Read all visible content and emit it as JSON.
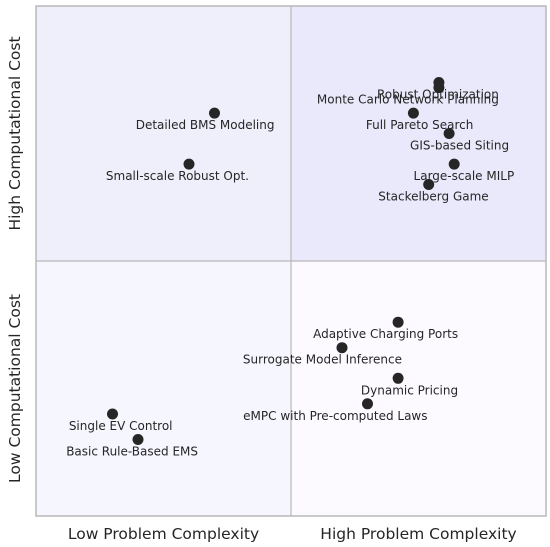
{
  "chart_data": {
    "type": "scatter",
    "title": "",
    "xlabel": "",
    "ylabel": "",
    "xlim": [
      0,
      10
    ],
    "ylim": [
      0,
      10
    ],
    "grid": false,
    "x_categories": [
      "Low Problem Complexity",
      "High Problem Complexity"
    ],
    "y_categories": [
      "Low Computational Cost",
      "High Computational Cost"
    ],
    "quadrant_colors": {
      "top_left": "#EFEFFB",
      "top_right": "#E9E9FB",
      "bottom_left": "#F6F6FE",
      "bottom_right": "#FCFAFF"
    },
    "border_color": "#B8B8B8",
    "point_color": "#262626",
    "points": [
      {
        "label": "Robust Optimization",
        "x": 7.9,
        "y": 8.5
      },
      {
        "label": "Monte Carlo Network Planning",
        "x": 7.9,
        "y": 8.4
      },
      {
        "label": "Full Pareto Search",
        "x": 7.4,
        "y": 7.9
      },
      {
        "label": "GIS-based Siting",
        "x": 8.1,
        "y": 7.5
      },
      {
        "label": "Large-scale MILP",
        "x": 8.2,
        "y": 6.9
      },
      {
        "label": "Stackelberg Game",
        "x": 7.7,
        "y": 6.5
      },
      {
        "label": "Detailed BMS Modeling",
        "x": 3.5,
        "y": 7.9
      },
      {
        "label": "Small-scale Robust Opt.",
        "x": 3.0,
        "y": 6.9
      },
      {
        "label": "Adaptive Charging Ports",
        "x": 7.1,
        "y": 3.8
      },
      {
        "label": "Surrogate Model Inference",
        "x": 6.0,
        "y": 3.3
      },
      {
        "label": "Dynamic Pricing",
        "x": 7.1,
        "y": 2.7
      },
      {
        "label": "eMPC with Pre-computed Laws",
        "x": 6.5,
        "y": 2.2
      },
      {
        "label": "Single EV Control",
        "x": 1.5,
        "y": 2.0
      },
      {
        "label": "Basic Rule-Based EMS",
        "x": 2.0,
        "y": 1.5
      }
    ]
  }
}
